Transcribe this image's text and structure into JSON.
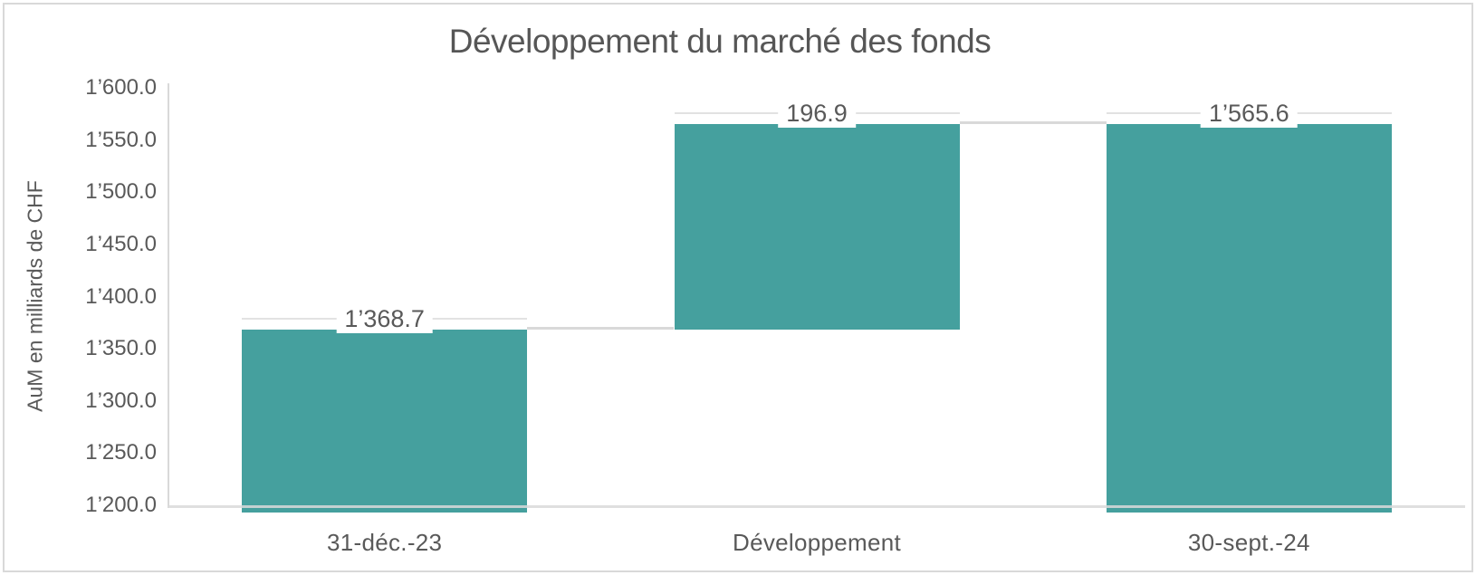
{
  "chart_data": {
    "type": "bar",
    "subtype": "waterfall",
    "title": "Développement du marché des fonds",
    "xlabel": "",
    "ylabel": "AuM en milliards de CHF",
    "categories": [
      "31-déc.-23",
      "Développement",
      "30-sept.-24"
    ],
    "bars": [
      {
        "category": "31-déc.-23",
        "start": 1200.0,
        "end": 1368.7,
        "value": 1368.7,
        "label": "1’368.7",
        "role": "total"
      },
      {
        "category": "Développement",
        "start": 1368.7,
        "end": 1565.6,
        "value": 196.9,
        "label": "196.9",
        "role": "increase"
      },
      {
        "category": "30-sept.-24",
        "start": 1200.0,
        "end": 1565.6,
        "value": 1565.6,
        "label": "1’565.6",
        "role": "total"
      }
    ],
    "values": [
      1368.7,
      196.9,
      1565.6
    ],
    "ylim": [
      1200.0,
      1600.0
    ],
    "ytick_step": 50,
    "yticks": [
      "1’600.0",
      "1’550.0",
      "1’500.0",
      "1’450.0",
      "1’400.0",
      "1’350.0",
      "1’300.0",
      "1’250.0",
      "1’200.0"
    ],
    "grid": false,
    "legend": false,
    "colors": {
      "bar": "#45a09e",
      "connector": "#d9d9d9",
      "label_line": "#e2e2e2",
      "axis_line": "#d9d9d9",
      "text": "#595959"
    }
  }
}
